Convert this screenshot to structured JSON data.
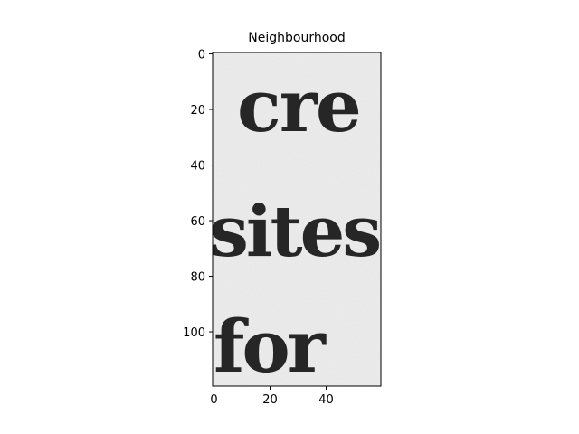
{
  "chart_data": {
    "type": "image",
    "title": "Neighbourhood",
    "xlabel": "",
    "ylabel": "",
    "xlim": [
      -0.5,
      59.5
    ],
    "ylim": [
      119.5,
      -0.5
    ],
    "x_ticks": [
      0,
      20,
      40
    ],
    "y_ticks": [
      0,
      20,
      40,
      60,
      80,
      100
    ],
    "image": {
      "colormap": "gray",
      "background_color": "#ececec",
      "ink_color": "#262626",
      "words": [
        {
          "text": "cre"
        },
        {
          "text": "sites"
        },
        {
          "text": "for"
        }
      ]
    }
  }
}
